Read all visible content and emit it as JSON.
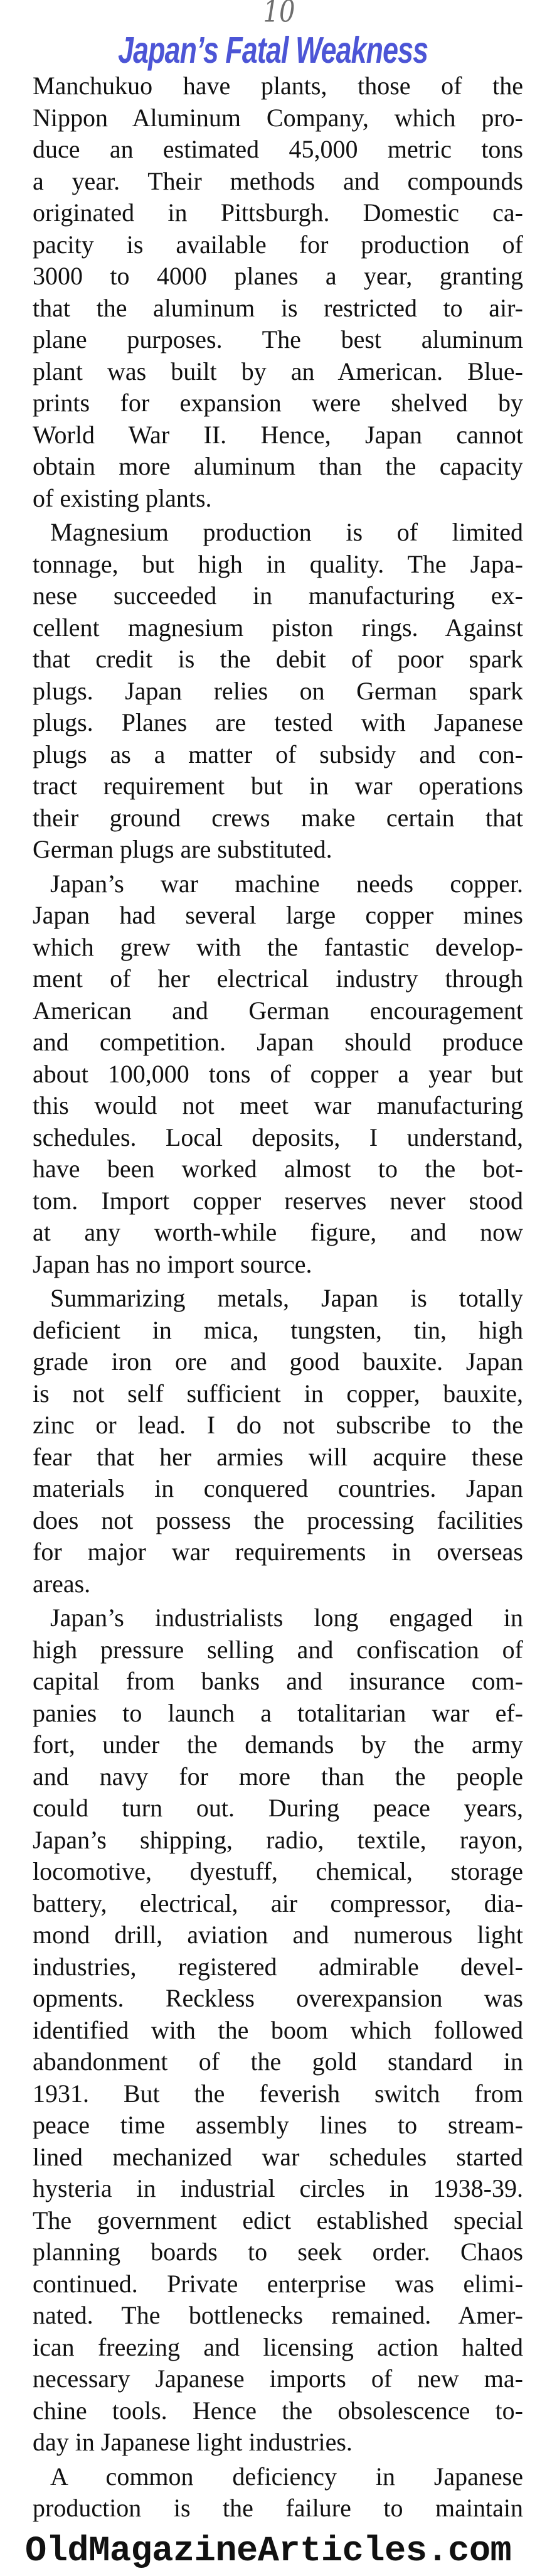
{
  "page_number": "10",
  "title": "Japan’s Fatal Weakness",
  "paragraphs": [
    {
      "indent": false,
      "lines": [
        "Manchukuo have plants, those of the",
        "Nippon Aluminum Company, which pro-",
        "duce an estimated 45,000 metric tons",
        "a year. Their methods and compounds",
        "originated in Pittsburgh. Domestic ca-",
        "pacity is available for production of",
        "3000 to 4000 planes a year, granting",
        "that the aluminum is restricted to air-",
        "plane purposes. The best aluminum",
        "plant was built by an American. Blue-",
        "prints for expansion were shelved by",
        "World War II. Hence, Japan cannot",
        "obtain more aluminum than the capacity",
        "of existing plants."
      ]
    },
    {
      "indent": true,
      "lines": [
        "Magnesium production is of limited",
        "tonnage, but high in quality. The Japa-",
        "nese succeeded in manufacturing ex-",
        "cellent magnesium piston rings. Against",
        "that credit is the debit of poor spark",
        "plugs. Japan relies on German spark",
        "plugs. Planes are tested with Japanese",
        "plugs as a matter of subsidy and con-",
        "tract requirement but in war operations",
        "their ground crews make certain that",
        "German plugs are substituted."
      ]
    },
    {
      "indent": true,
      "lines": [
        "Japan’s war machine needs copper.",
        "Japan had several large copper mines",
        "which grew with the fantastic develop-",
        "ment of her electrical industry through",
        "American and German encouragement",
        "and competition. Japan should produce",
        "about 100,000 tons of copper a year but",
        "this would not meet war manufacturing",
        "schedules. Local deposits, I understand,",
        "have been worked almost to the bot-",
        "tom. Import copper reserves never stood",
        "at any worth-while figure, and now",
        "Japan has no import source."
      ]
    },
    {
      "indent": true,
      "lines": [
        "Summarizing metals, Japan is totally",
        "deficient in mica, tungsten, tin, high",
        "grade iron ore and good bauxite. Japan",
        "is not self sufficient in copper, bauxite,",
        "zinc or lead. I do not subscribe to the",
        "fear that her armies will acquire these",
        "materials in conquered countries. Japan",
        "does not possess the processing facilities",
        "for major war requirements in overseas",
        "areas."
      ]
    },
    {
      "indent": true,
      "lines": [
        "Japan’s industrialists long engaged in",
        "high pressure selling and confiscation of",
        "capital from banks and insurance com-",
        "panies to launch a totalitarian war ef-",
        "fort, under the demands by the army",
        "and navy for more than the people",
        "could turn out. During peace years,",
        "Japan’s shipping, radio, textile, rayon,",
        "locomotive, dyestuff, chemical, storage",
        "battery, electrical, air compressor, dia-",
        "mond drill, aviation and numerous light",
        "industries, registered admirable devel-",
        "opments. Reckless overexpansion was",
        "identified with the boom which followed",
        "abandonment of the gold standard in",
        "1931. But the feverish switch from",
        "peace time assembly lines to stream-",
        "lined mechanized war schedules started",
        "hysteria in industrial circles in 1938-39.",
        "The government edict established special",
        "planning boards to seek order. Chaos",
        "continued. Private enterprise was elimi-",
        "nated. The bottlenecks remained. Amer-",
        "ican freezing and licensing action halted",
        "necessary Japanese imports of new ma-",
        "chine tools. Hence the obsolescence to-",
        "day in Japanese light industries."
      ]
    },
    {
      "indent": true,
      "continues": true,
      "lines": [
        "A common deficiency in Japanese",
        "production is the failure to maintain"
      ]
    }
  ],
  "footer": "OldMagazineArticles.com"
}
